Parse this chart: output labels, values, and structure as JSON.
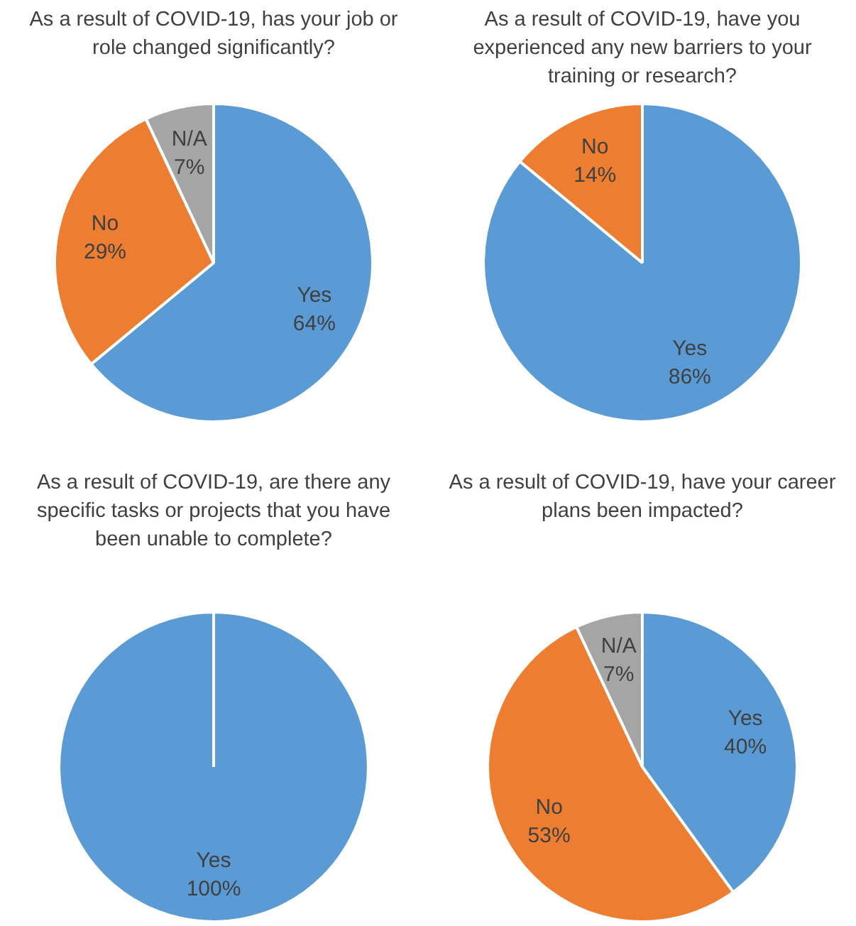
{
  "chart_data": [
    {
      "type": "pie",
      "title": "As a result of COVID-19, has your job or role changed significantly?",
      "categories": [
        "Yes",
        "No",
        "N/A"
      ],
      "values": [
        64,
        29,
        7
      ],
      "colors": [
        "#5b9bd5",
        "#ed7d31",
        "#a5a5a5"
      ],
      "value_labels": [
        "64%",
        "29%",
        "7%"
      ]
    },
    {
      "type": "pie",
      "title": "As a result of COVID-19, have you experienced any new barriers to your training or research?",
      "categories": [
        "Yes",
        "No"
      ],
      "values": [
        86,
        14
      ],
      "colors": [
        "#5b9bd5",
        "#ed7d31"
      ],
      "value_labels": [
        "86%",
        "14%"
      ]
    },
    {
      "type": "pie",
      "title": "As a result of COVID-19, are there any specific tasks or projects that you have been unable to complete?",
      "categories": [
        "Yes"
      ],
      "values": [
        100
      ],
      "colors": [
        "#5b9bd5"
      ],
      "value_labels": [
        "100%"
      ]
    },
    {
      "type": "pie",
      "title": "As a result of COVID-19, have your career plans been impacted?",
      "categories": [
        "Yes",
        "No",
        "N/A"
      ],
      "values": [
        40,
        53,
        7
      ],
      "colors": [
        "#5b9bd5",
        "#ed7d31",
        "#a5a5a5"
      ],
      "value_labels": [
        "40%",
        "53%",
        "7%"
      ]
    }
  ]
}
